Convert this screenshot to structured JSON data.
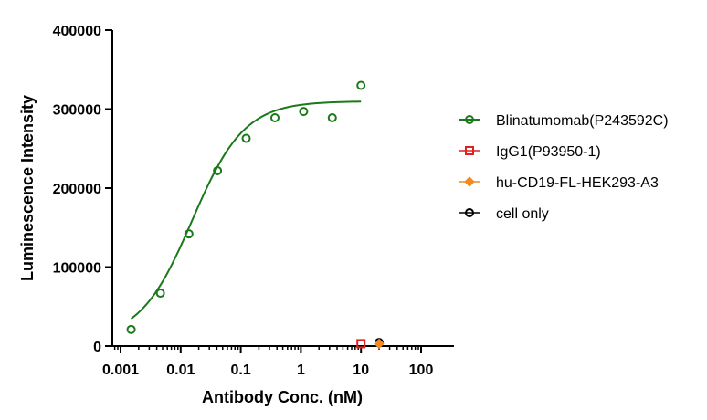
{
  "chart_data": {
    "type": "scatter",
    "xlabel": "Antibody Conc. (nM)",
    "ylabel": "Luminescence Intensity",
    "x_scale": "log",
    "xlim": [
      0.0002,
      100
    ],
    "ylim": [
      0,
      400000
    ],
    "x_ticks": [
      0.001,
      0.01,
      0.1,
      1,
      10,
      100
    ],
    "x_tick_labels": [
      "0.001",
      "0.01",
      "0.1",
      "1",
      "10",
      "100"
    ],
    "y_ticks": [
      0,
      100000,
      200000,
      300000,
      400000
    ],
    "y_tick_labels": [
      "0",
      "100000",
      "200000",
      "300000",
      "400000"
    ],
    "legend_position": "right",
    "series": [
      {
        "name": "Blinatumomab(P243592C)",
        "color": "#1a7a1a",
        "marker": "circle",
        "fit": "sigmoid",
        "points": [
          {
            "x": 0.0015,
            "y": 21000
          },
          {
            "x": 0.0046,
            "y": 67000
          },
          {
            "x": 0.0137,
            "y": 142000
          },
          {
            "x": 0.041,
            "y": 222000
          },
          {
            "x": 0.123,
            "y": 263000
          },
          {
            "x": 0.37,
            "y": 289000
          },
          {
            "x": 1.11,
            "y": 297000
          },
          {
            "x": 3.33,
            "y": 289000
          },
          {
            "x": 10,
            "y": 330000
          }
        ],
        "curve": {
          "bottom": 8000,
          "top": 310000,
          "ec50": 0.0155,
          "hill": 1.0,
          "x_range": [
            0.0015,
            10
          ]
        }
      },
      {
        "name": "IgG1(P93950-1)",
        "color": "#dd2222",
        "marker": "square",
        "points": [
          {
            "x": 10,
            "y": 3000
          }
        ]
      },
      {
        "name": "hu-CD19-FL-HEK293-A3",
        "color": "#f08a24",
        "marker": "diamond",
        "points": [
          {
            "x": 20,
            "y": 3000
          }
        ]
      },
      {
        "name": "cell only",
        "color": "#000000",
        "marker": "circle",
        "points": [
          {
            "x": 20,
            "y": 4500
          }
        ]
      }
    ]
  }
}
